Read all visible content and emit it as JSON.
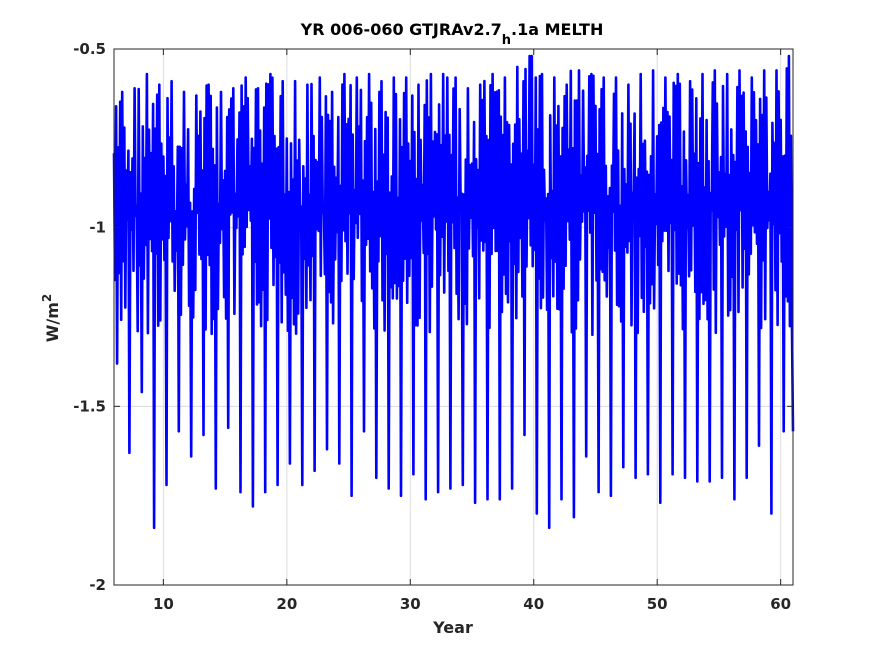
{
  "chart_data": {
    "type": "line",
    "title": {
      "main": "YR 006-060 GTJRAv2.7",
      "sub": "h",
      "rest": ".1a MELTH"
    },
    "xlabel": "Year",
    "ylabel": {
      "main": "W/m",
      "sup": "2"
    },
    "xlim": [
      6,
      61
    ],
    "ylim": [
      -2,
      -0.5
    ],
    "y_reversed": true,
    "grid": true,
    "x_ticks": [
      10,
      20,
      30,
      40,
      50,
      60
    ],
    "x_tick_labels": [
      "10",
      "20",
      "30",
      "40",
      "50",
      "60"
    ],
    "y_ticks": [
      -0.5,
      -1,
      -1.5,
      -2
    ],
    "y_tick_labels": [
      "-0.5",
      "-1",
      "-1.5",
      "-2"
    ],
    "series": [
      {
        "color": "#0000ff",
        "samples_per_year": 12,
        "note_fields_absent": true,
        "x_start": 6,
        "annual_minima": [
          -1.38,
          -1.63,
          -1.46,
          -1.84,
          -1.72,
          -1.57,
          -1.64,
          -1.58,
          -1.73,
          -1.56,
          -1.74,
          -1.78,
          -1.74,
          -1.72,
          -1.66,
          -1.72,
          -1.68,
          -1.62,
          -1.66,
          -1.75,
          -1.57,
          -1.7,
          -1.73,
          -1.75,
          -1.69,
          -1.76,
          -1.74,
          -1.73,
          -1.72,
          -1.77,
          -1.76,
          -1.76,
          -1.73,
          -1.58,
          -1.8,
          -1.84,
          -1.76,
          -1.81,
          -1.64,
          -1.74,
          -1.75,
          -1.67,
          -1.7,
          -1.69,
          -1.77,
          -1.69,
          -1.7,
          -1.71,
          -1.71,
          -1.7,
          -1.76,
          -1.7,
          -1.61,
          -1.8,
          -1.57
        ],
        "annual_maxima": [
          -0.62,
          -0.61,
          -0.57,
          -0.6,
          -0.59,
          -0.62,
          -0.63,
          -0.6,
          -0.62,
          -0.61,
          -0.58,
          -0.61,
          -0.57,
          -0.59,
          -0.59,
          -0.6,
          -0.58,
          -0.62,
          -0.57,
          -0.58,
          -0.57,
          -0.59,
          -0.58,
          -0.58,
          -0.6,
          -0.57,
          -0.57,
          -0.58,
          -0.61,
          -0.6,
          -0.57,
          -0.58,
          -0.55,
          -0.52,
          -0.57,
          -0.58,
          -0.6,
          -0.56,
          -0.57,
          -0.58,
          -0.58,
          -0.6,
          -0.57,
          -0.56,
          -0.58,
          -0.57,
          -0.59,
          -0.57,
          -0.56,
          -0.57,
          -0.56,
          -0.58,
          -0.56,
          -0.56,
          -0.52
        ]
      }
    ]
  }
}
